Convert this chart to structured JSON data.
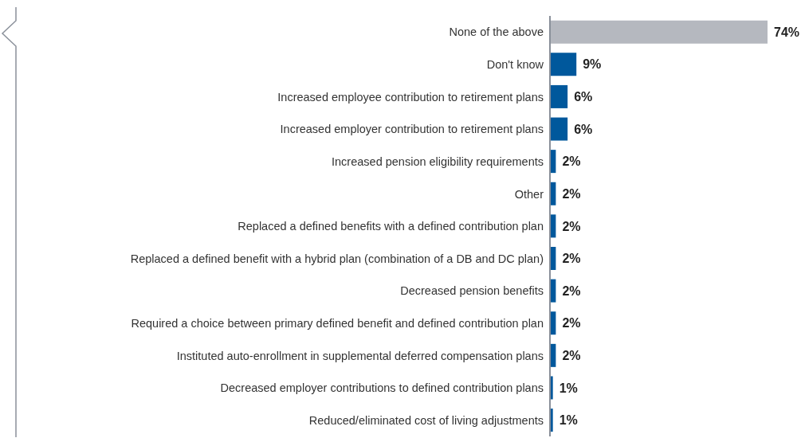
{
  "chart_data": {
    "type": "bar",
    "orientation": "horizontal",
    "categories": [
      "None of the above",
      "Don't know",
      "Increased employee contribution to retirement plans",
      "Increased employer contribution to retirement plans",
      "Increased pension eligibility requirements",
      "Other",
      "Replaced a defined benefits with a defined contribution plan",
      "Replaced a defined benefit with a hybrid plan (combination of a DB and DC plan)",
      "Decreased pension benefits",
      "Required a choice between primary defined benefit and defined contribution plan",
      "Instituted auto-enrollment in supplemental deferred compensation plans",
      "Decreased employer contributions to defined contribution plans",
      "Reduced/eliminated cost of living adjustments"
    ],
    "values": [
      74,
      9,
      6,
      6,
      2,
      2,
      2,
      2,
      2,
      2,
      2,
      1,
      1
    ],
    "colors": [
      "#b5b8bf",
      "#00589c",
      "#00589c",
      "#00589c",
      "#00589c",
      "#00589c",
      "#00589c",
      "#00589c",
      "#00589c",
      "#00589c",
      "#00589c",
      "#00589c",
      "#00589c"
    ],
    "value_labels": [
      "74%",
      "9%",
      "6%",
      "6%",
      "2%",
      "2%",
      "2%",
      "2%",
      "2%",
      "2%",
      "2%",
      "1%",
      "1%"
    ]
  }
}
